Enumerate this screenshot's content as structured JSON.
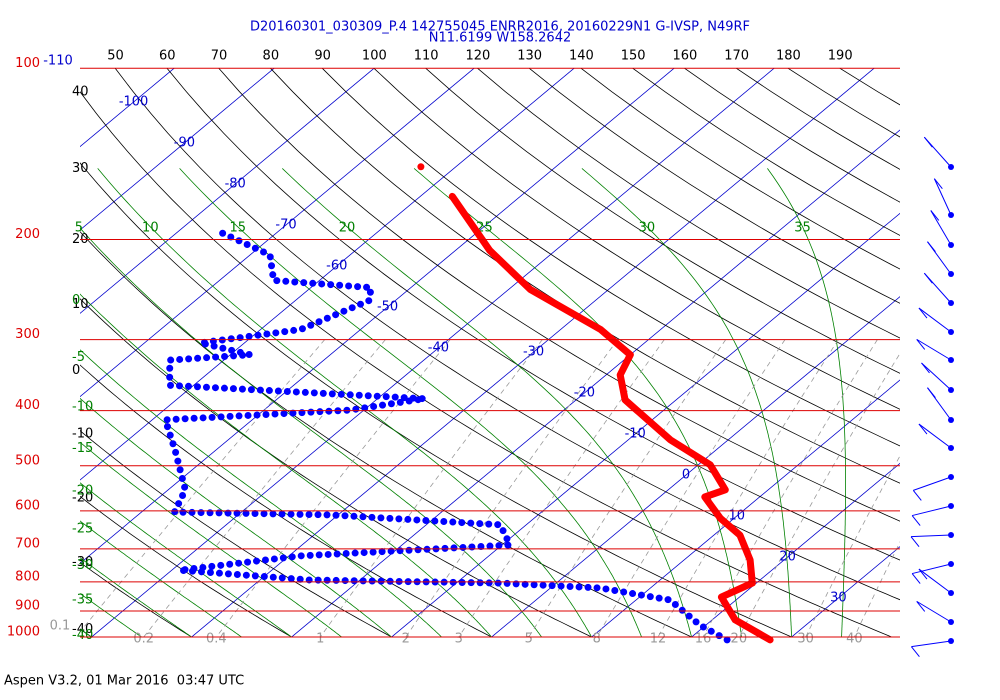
{
  "chart_data": {
    "type": "skewt",
    "title": "D20160301_030309_P.4 142755045 ENRR2016, 20160229N1 G-IVSP, N49RF",
    "subtitle": "N11.6199 W158.2642",
    "footer": "Aspen V3.2, 01 Mar 2016  03:47 UTC",
    "pressure_ticks": [
      100,
      200,
      300,
      400,
      500,
      600,
      700,
      800,
      900,
      1000
    ],
    "isotherms": [
      -110,
      -100,
      -90,
      -80,
      -70,
      -60,
      -50,
      -40,
      -30,
      -20,
      -10,
      0,
      10,
      20,
      30
    ],
    "dry_adiabats_left": [
      40,
      30,
      20,
      10,
      0,
      -10,
      -20,
      -30,
      -40
    ],
    "dry_adiabats_top": [
      50,
      60,
      70,
      80,
      90,
      100,
      110,
      120,
      130,
      140,
      150,
      160,
      170,
      180,
      190
    ],
    "moist_adiabats_top": [
      5,
      10,
      15,
      20,
      25,
      30,
      35
    ],
    "moist_adiabats_left": [
      0,
      -5,
      -10,
      -15,
      -20,
      -25,
      -30,
      -35,
      -40
    ],
    "mixing_ratios": [
      0.1,
      0.2,
      0.4,
      1,
      2,
      3,
      5,
      8,
      12,
      16,
      20,
      30,
      40
    ],
    "series": [
      {
        "color": "#ff0000",
        "pressure": [
          1012,
          933,
          851,
          804,
          732,
          662,
          618,
          567,
          551,
          498,
          450,
          383,
          346,
          319,
          288,
          245,
          209,
          168
        ],
        "values": [
          28.2,
          22.3,
          18.2,
          19.6,
          16.6,
          12.6,
          8.6,
          4.5,
          5.7,
          1.2,
          -5.8,
          -15.1,
          -18.6,
          -20,
          -26,
          -37.8,
          -46.6,
          -56.8
        ]
      },
      {
        "color": "#0000ff",
        "pressure": [
          1012,
          953,
          861,
          820,
          804,
          794,
          763,
          720,
          689,
          635,
          610,
          603,
          551,
          469,
          415,
          399,
          381,
          361,
          326,
          319,
          304,
          288,
          256,
          243,
          236,
          213,
          194
        ],
        "values": [
          23.9,
          19.4,
          13.4,
          5,
          -5.6,
          -25,
          -39.2,
          -28.9,
          -9.2,
          -12.6,
          -30.8,
          -46.7,
          -48.3,
          -54.1,
          -58.7,
          -41.4,
          -35.3,
          -62.4,
          -65.4,
          -58,
          -64.4,
          -56,
          -52.6,
          -54,
          -64.6,
          -68,
          -75.8
        ]
      }
    ],
    "point": {
      "color": "#ff0000",
      "pressure": 149,
      "value": -63.5
    }
  }
}
